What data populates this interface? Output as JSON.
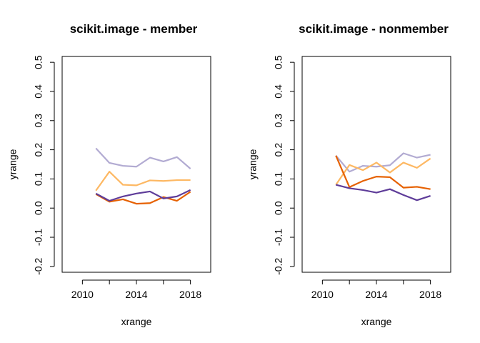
{
  "chart_data": [
    {
      "type": "line",
      "title": "scikit.image - member",
      "xlabel": "xrange",
      "ylabel": "yrange",
      "xlim": [
        2008.5,
        2019.5
      ],
      "ylim": [
        -0.22,
        0.52
      ],
      "xticks": [
        2010,
        2012,
        2014,
        2016,
        2018
      ],
      "xtick_labels": [
        "2010",
        "",
        "2014",
        "",
        "2018"
      ],
      "yticks": [
        -0.2,
        -0.1,
        0.0,
        0.1,
        0.2,
        0.3,
        0.4,
        0.5
      ],
      "ytick_labels": [
        "-0.2",
        "-0.1",
        "0.0",
        "0.1",
        "0.2",
        "0.3",
        "0.4",
        "0.5"
      ],
      "x": [
        2011,
        2012,
        2013,
        2014,
        2015,
        2016,
        2017,
        2018
      ],
      "series": [
        {
          "color": "#b2abd2",
          "values": [
            0.205,
            0.155,
            0.145,
            0.142,
            0.173,
            0.16,
            0.175,
            0.135
          ]
        },
        {
          "color": "#fdb863",
          "values": [
            0.06,
            0.125,
            0.08,
            0.078,
            0.095,
            0.093,
            0.096,
            0.096
          ]
        },
        {
          "color": "#e66101",
          "values": [
            0.048,
            0.022,
            0.03,
            0.015,
            0.017,
            0.038,
            0.025,
            0.056
          ]
        },
        {
          "color": "#5e3c99",
          "values": [
            0.05,
            0.025,
            0.04,
            0.05,
            0.057,
            0.033,
            0.04,
            0.062
          ]
        }
      ]
    },
    {
      "type": "line",
      "title": "scikit.image - nonmember",
      "xlabel": "xrange",
      "ylabel": "yrange",
      "xlim": [
        2008.5,
        2019.5
      ],
      "ylim": [
        -0.22,
        0.52
      ],
      "xticks": [
        2010,
        2012,
        2014,
        2016,
        2018
      ],
      "xtick_labels": [
        "2010",
        "",
        "2014",
        "",
        "2018"
      ],
      "yticks": [
        -0.2,
        -0.1,
        0.0,
        0.1,
        0.2,
        0.3,
        0.4,
        0.5
      ],
      "ytick_labels": [
        "-0.2",
        "-0.1",
        "0.0",
        "0.1",
        "0.2",
        "0.3",
        "0.4",
        "0.5"
      ],
      "x": [
        2011,
        2012,
        2013,
        2014,
        2015,
        2016,
        2017,
        2018
      ],
      "series": [
        {
          "color": "#b2abd2",
          "values": [
            0.18,
            0.125,
            0.145,
            0.142,
            0.147,
            0.188,
            0.173,
            0.183
          ]
        },
        {
          "color": "#fdb863",
          "values": [
            0.08,
            0.148,
            0.13,
            0.156,
            0.122,
            0.156,
            0.138,
            0.17
          ]
        },
        {
          "color": "#e66101",
          "values": [
            0.18,
            0.072,
            0.093,
            0.108,
            0.106,
            0.07,
            0.073,
            0.065
          ]
        },
        {
          "color": "#5e3c99",
          "values": [
            0.08,
            0.068,
            0.062,
            0.053,
            0.065,
            0.045,
            0.027,
            0.042
          ]
        }
      ]
    }
  ]
}
